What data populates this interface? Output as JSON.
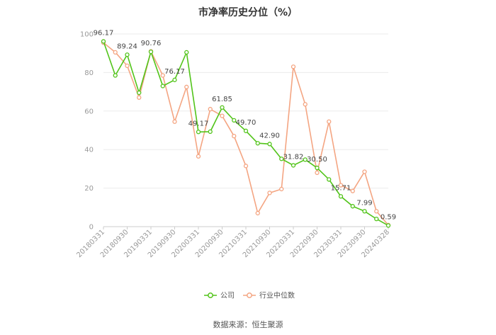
{
  "chart_data": {
    "type": "line",
    "title": "市净率历史分位（%）",
    "xlabel": "",
    "ylabel": "",
    "ylim": [
      0,
      100
    ],
    "yticks": [
      0,
      20,
      40,
      60,
      80,
      100
    ],
    "grid": "horizontal",
    "legend_position": "bottom",
    "x": [
      "20180331",
      "20180630",
      "20180930",
      "20181231",
      "20190331",
      "20190630",
      "20190930",
      "20191231",
      "20200331",
      "20200630",
      "20200930",
      "20201231",
      "20210331",
      "20210630",
      "20210930",
      "20211231",
      "20220331",
      "20220630",
      "20220930",
      "20221231",
      "20230331",
      "20230630",
      "20230930",
      "20231231",
      "20240328"
    ],
    "xticks": [
      "20180331",
      "20180930",
      "20190331",
      "20190930",
      "20200331",
      "20200930",
      "20210331",
      "20210930",
      "20220331",
      "20220930",
      "20230331",
      "20230930",
      "20240328"
    ],
    "series": [
      {
        "name": "公司",
        "color": "#52c41a",
        "values": [
          96.17,
          78.5,
          89.24,
          69.5,
          90.76,
          73.0,
          76.17,
          90.5,
          49.17,
          49.3,
          61.85,
          55.2,
          49.7,
          43.3,
          42.9,
          35.2,
          31.82,
          34.8,
          30.5,
          24.5,
          15.71,
          10.6,
          7.99,
          4.0,
          0.59
        ],
        "labels": {
          "0": "96.17",
          "2": "89.24",
          "4": "90.76",
          "6": "76.17",
          "8": "49.17",
          "10": "61.85",
          "12": "49.70",
          "14": "42.90",
          "16": "31.82",
          "18": "30.50",
          "20": "15.71",
          "22": "7.99",
          "24": "0.59"
        }
      },
      {
        "name": "行业中位数",
        "color": "#f4a582",
        "values": [
          95.5,
          90.5,
          83.5,
          67.0,
          91.0,
          78.5,
          54.5,
          72.5,
          36.5,
          61.0,
          57.5,
          47.0,
          31.5,
          7.0,
          17.5,
          19.5,
          83.0,
          63.5,
          28.0,
          54.5,
          21.5,
          18.5,
          28.5,
          8.0,
          0.8
        ]
      }
    ]
  },
  "source": "数据来源：恒生聚源"
}
